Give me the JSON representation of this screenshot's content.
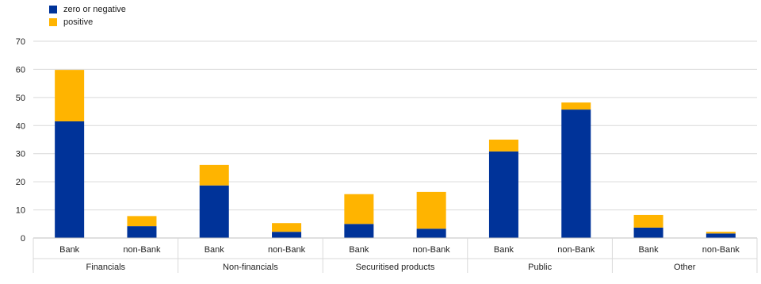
{
  "chart_data": {
    "type": "bar",
    "stacked": true,
    "groups": [
      "Financials",
      "Non-financials",
      "Securitised products",
      "Public",
      "Other"
    ],
    "categories": [
      "Bank",
      "non-Bank",
      "Bank",
      "non-Bank",
      "Bank",
      "non-Bank",
      "Bank",
      "non-Bank",
      "Bank",
      "non-Bank"
    ],
    "series": [
      {
        "name": "zero or negative",
        "color": "#003399",
        "values": [
          41.5,
          4.2,
          18.7,
          2.2,
          5.0,
          3.3,
          30.8,
          45.7,
          3.7,
          1.6
        ]
      },
      {
        "name": "positive",
        "color": "#FFB400",
        "values": [
          18.3,
          3.6,
          7.3,
          3.1,
          10.6,
          13.1,
          4.2,
          2.5,
          4.5,
          0.6
        ]
      }
    ],
    "ylim": [
      0,
      70
    ],
    "yticks": [
      0,
      10,
      20,
      30,
      40,
      50,
      60,
      70
    ],
    "grid": true,
    "legend_position": "top-left",
    "xlabel": "",
    "ylabel": ""
  }
}
